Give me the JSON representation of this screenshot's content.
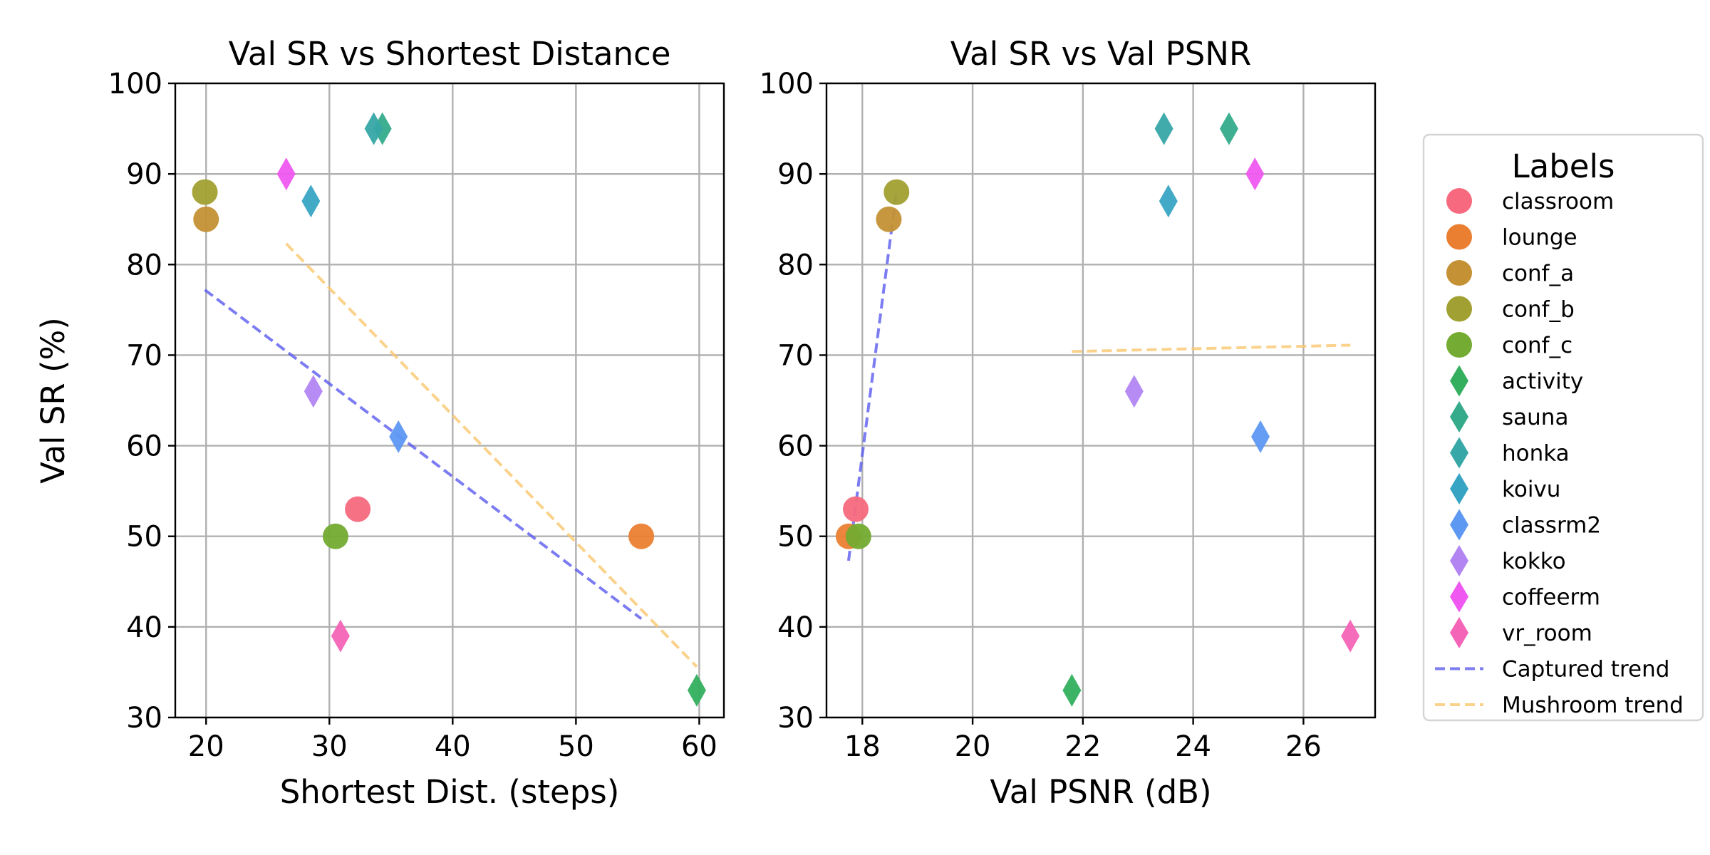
{
  "chart_data": [
    {
      "type": "scatter",
      "title": "Val SR vs Shortest Distance",
      "xlabel": "Shortest Dist. (steps)",
      "ylabel": "Val SR (%)",
      "xlim": [
        17.5,
        62
      ],
      "ylim": [
        30,
        100
      ],
      "xticks": [
        20,
        30,
        40,
        50,
        60
      ],
      "yticks": [
        30,
        40,
        50,
        60,
        70,
        80,
        90,
        100
      ],
      "grid": true,
      "points": [
        {
          "label": "classroom",
          "x": 32.3,
          "y": 53
        },
        {
          "label": "lounge",
          "x": 55.3,
          "y": 50
        },
        {
          "label": "conf_a",
          "x": 20.0,
          "y": 85
        },
        {
          "label": "conf_b",
          "x": 19.9,
          "y": 88
        },
        {
          "label": "conf_c",
          "x": 30.5,
          "y": 50
        },
        {
          "label": "activity",
          "x": 59.8,
          "y": 33
        },
        {
          "label": "sauna",
          "x": 34.3,
          "y": 95
        },
        {
          "label": "honka",
          "x": 33.6,
          "y": 95
        },
        {
          "label": "koivu",
          "x": 28.5,
          "y": 87
        },
        {
          "label": "classrm2",
          "x": 35.6,
          "y": 61
        },
        {
          "label": "kokko",
          "x": 28.7,
          "y": 66
        },
        {
          "label": "coffeerm",
          "x": 26.5,
          "y": 90
        },
        {
          "label": "vr_room",
          "x": 30.9,
          "y": 39
        }
      ],
      "trends": [
        {
          "name": "Captured trend",
          "x": [
            19.9,
            55.3
          ],
          "y": [
            77.2,
            40.9
          ]
        },
        {
          "name": "Mushroom trend",
          "x": [
            26.5,
            59.8
          ],
          "y": [
            82.3,
            35.6
          ]
        }
      ]
    },
    {
      "type": "scatter",
      "title": "Val SR vs Val PSNR",
      "xlabel": "Val PSNR (dB)",
      "ylabel": "",
      "xlim": [
        17.35,
        27.3
      ],
      "ylim": [
        30,
        100
      ],
      "xticks": [
        18,
        20,
        22,
        24,
        26
      ],
      "yticks": [
        30,
        40,
        50,
        60,
        70,
        80,
        90,
        100
      ],
      "grid": true,
      "points": [
        {
          "label": "classroom",
          "x": 17.88,
          "y": 53
        },
        {
          "label": "lounge",
          "x": 17.75,
          "y": 50
        },
        {
          "label": "conf_a",
          "x": 18.48,
          "y": 85
        },
        {
          "label": "conf_b",
          "x": 18.62,
          "y": 88
        },
        {
          "label": "conf_c",
          "x": 17.93,
          "y": 50
        },
        {
          "label": "activity",
          "x": 21.8,
          "y": 33
        },
        {
          "label": "sauna",
          "x": 24.65,
          "y": 95
        },
        {
          "label": "honka",
          "x": 23.47,
          "y": 95
        },
        {
          "label": "koivu",
          "x": 23.55,
          "y": 87
        },
        {
          "label": "classrm2",
          "x": 25.22,
          "y": 61
        },
        {
          "label": "kokko",
          "x": 22.93,
          "y": 66
        },
        {
          "label": "coffeerm",
          "x": 25.12,
          "y": 90
        },
        {
          "label": "vr_room",
          "x": 26.85,
          "y": 39
        }
      ],
      "trends": [
        {
          "name": "Captured trend",
          "x": [
            17.75,
            18.62
          ],
          "y": [
            47.3,
            88.1
          ]
        },
        {
          "name": "Mushroom trend",
          "x": [
            21.8,
            26.85
          ],
          "y": [
            70.4,
            71.1
          ]
        }
      ]
    }
  ],
  "legend": {
    "title": "Labels",
    "placement": "right",
    "items": [
      {
        "label": "classroom",
        "marker": "circle",
        "color": "#f7697e"
      },
      {
        "label": "lounge",
        "marker": "circle",
        "color": "#ea7f32"
      },
      {
        "label": "conf_a",
        "marker": "circle",
        "color": "#c49135"
      },
      {
        "label": "conf_b",
        "marker": "circle",
        "color": "#a1a032"
      },
      {
        "label": "conf_c",
        "marker": "circle",
        "color": "#74ab32"
      },
      {
        "label": "activity",
        "marker": "diamond",
        "color": "#33af5e"
      },
      {
        "label": "sauna",
        "marker": "diamond",
        "color": "#35ab8b"
      },
      {
        "label": "honka",
        "marker": "diamond",
        "color": "#37a7a7"
      },
      {
        "label": "koivu",
        "marker": "diamond",
        "color": "#38a4c4"
      },
      {
        "label": "classrm2",
        "marker": "diamond",
        "color": "#5d98f3"
      },
      {
        "label": "kokko",
        "marker": "diamond",
        "color": "#b285f3"
      },
      {
        "label": "coffeerm",
        "marker": "diamond",
        "color": "#ef58f1"
      },
      {
        "label": "vr_room",
        "marker": "diamond",
        "color": "#f464b7"
      },
      {
        "label": "Captured trend",
        "marker": "dashed-line",
        "color": "#5c5cf0"
      },
      {
        "label": "Mushroom trend",
        "marker": "dashed-line",
        "color": "#fbc86f"
      }
    ]
  }
}
